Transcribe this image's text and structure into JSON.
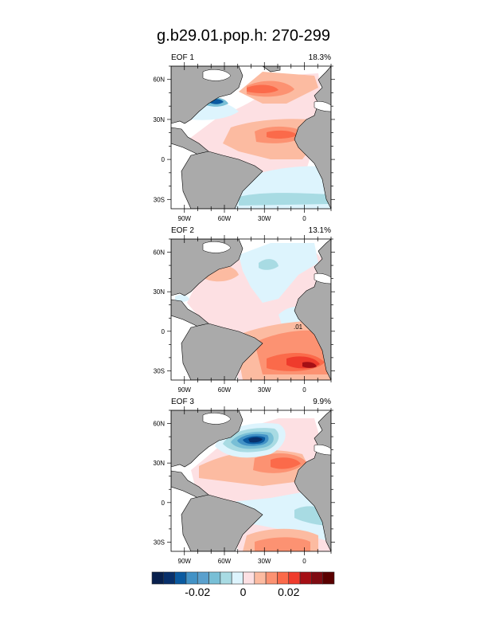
{
  "figure": {
    "title": "g.b29.01.pop.h: 270-299"
  },
  "chart_data": {
    "type": "heatmap",
    "title": "g.b29.01.pop.h: 270-299",
    "description_kind": "EOF maps of North/South Atlantic",
    "lon_range": [
      -100,
      20
    ],
    "lat_range": [
      -37,
      70
    ],
    "x_ticks": [
      {
        "value": -90,
        "label": "90W"
      },
      {
        "value": -60,
        "label": "60W"
      },
      {
        "value": -30,
        "label": "30W"
      },
      {
        "value": 0,
        "label": "0"
      }
    ],
    "y_ticks": [
      {
        "value": 60,
        "label": "60N"
      },
      {
        "value": 30,
        "label": "30N"
      },
      {
        "value": 0,
        "label": "0"
      },
      {
        "value": -30,
        "label": "30S"
      }
    ],
    "panels": [
      {
        "name": "EOF 1",
        "variance": "18.3%"
      },
      {
        "name": "EOF 2",
        "variance": "13.1%",
        "contour_label": ".01"
      },
      {
        "name": "EOF 3",
        "variance": "9.9%"
      }
    ],
    "colorbar": {
      "levels": [
        -0.035,
        -0.03,
        -0.025,
        -0.02,
        -0.015,
        -0.01,
        -0.005,
        0,
        0.005,
        0.01,
        0.015,
        0.02,
        0.025,
        0.03,
        0.035
      ],
      "colors": [
        "#08204d",
        "#08306b",
        "#0a5aa0",
        "#4292c6",
        "#5aa0cd",
        "#78bfd6",
        "#a8dbe3",
        "#ddf4fd",
        "#fde0e3",
        "#fcbba1",
        "#fc9272",
        "#fb6a4a",
        "#ef3b2c",
        "#a50f15",
        "#7f0b12",
        "#5a0000"
      ],
      "labels": [
        {
          "value": -0.02,
          "label": "-0.02"
        },
        {
          "value": 0,
          "label": "0"
        },
        {
          "value": 0.02,
          "label": "0.02"
        }
      ]
    }
  },
  "colors": {
    "land": "#aaaaaa",
    "ocean_blank": "#ffffff"
  }
}
